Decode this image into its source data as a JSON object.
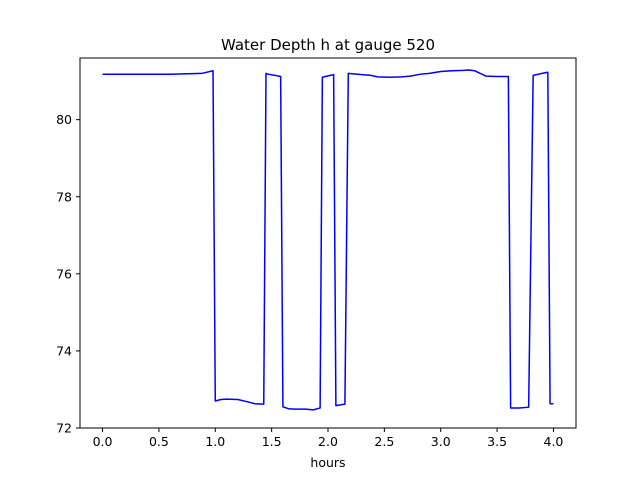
{
  "chart_data": {
    "type": "line",
    "title": "Water Depth h at gauge 520",
    "xlabel": "hours",
    "ylabel": "",
    "xlim": [
      -0.2,
      4.2
    ],
    "ylim": [
      72,
      81.6
    ],
    "xticks": [
      0.0,
      0.5,
      1.0,
      1.5,
      2.0,
      2.5,
      3.0,
      3.5,
      4.0
    ],
    "xtick_labels": [
      "0.0",
      "0.5",
      "1.0",
      "1.5",
      "2.0",
      "2.5",
      "3.0",
      "3.5",
      "4.0"
    ],
    "yticks": [
      72,
      74,
      76,
      78,
      80
    ],
    "ytick_labels": [
      "72",
      "74",
      "76",
      "78",
      "80"
    ],
    "grid": false,
    "series": [
      {
        "color": "#0000ff",
        "x": [
          0.0,
          0.3,
          0.6,
          0.88,
          0.98,
          1.0,
          1.05,
          1.1,
          1.2,
          1.3,
          1.35,
          1.43,
          1.45,
          1.47,
          1.53,
          1.58,
          1.6,
          1.65,
          1.7,
          1.8,
          1.87,
          1.93,
          1.95,
          2.02,
          2.05,
          2.07,
          2.15,
          2.18,
          2.3,
          2.38,
          2.44,
          2.55,
          2.65,
          2.73,
          2.82,
          2.9,
          3.0,
          3.1,
          3.2,
          3.25,
          3.3,
          3.4,
          3.5,
          3.6,
          3.62,
          3.7,
          3.78,
          3.82,
          3.9,
          3.95,
          3.97,
          4.0
        ],
        "y": [
          81.18,
          81.18,
          81.18,
          81.2,
          81.27,
          72.7,
          72.74,
          72.75,
          72.74,
          72.67,
          72.63,
          72.62,
          81.2,
          81.18,
          81.15,
          81.12,
          72.55,
          72.5,
          72.49,
          72.49,
          72.47,
          72.52,
          81.1,
          81.15,
          81.17,
          72.58,
          72.62,
          81.2,
          81.17,
          81.15,
          81.11,
          81.1,
          81.11,
          81.13,
          81.18,
          81.2,
          81.25,
          81.27,
          81.28,
          81.29,
          81.27,
          81.13,
          81.12,
          81.12,
          72.52,
          72.52,
          72.54,
          81.15,
          81.2,
          81.23,
          72.63,
          72.63
        ]
      }
    ]
  }
}
